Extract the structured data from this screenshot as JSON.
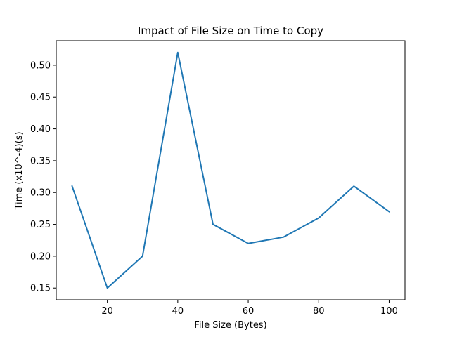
{
  "chart_data": {
    "type": "line",
    "title": "Impact of File Size on Time to Copy",
    "xlabel": "File Size (Bytes)",
    "ylabel": "Time (x10^-4)(s)",
    "x": [
      10,
      20,
      30,
      40,
      50,
      60,
      70,
      80,
      90,
      100
    ],
    "series": [
      {
        "values": [
          0.31,
          0.15,
          0.2,
          0.52,
          0.25,
          0.22,
          0.23,
          0.26,
          0.31,
          0.27
        ],
        "color": "#1f77b4"
      }
    ],
    "xlim": [
      5.5,
      104.5
    ],
    "ylim": [
      0.1315,
      0.5385
    ],
    "xticks": [
      20,
      40,
      60,
      80,
      100
    ],
    "xtick_labels": [
      "20",
      "40",
      "60",
      "80",
      "100"
    ],
    "yticks": [
      0.15,
      0.2,
      0.25,
      0.3,
      0.35,
      0.4,
      0.45,
      0.5
    ],
    "ytick_labels": [
      "0.15",
      "0.20",
      "0.25",
      "0.30",
      "0.35",
      "0.40",
      "0.45",
      "0.50"
    ],
    "grid": false,
    "legend": "none"
  }
}
